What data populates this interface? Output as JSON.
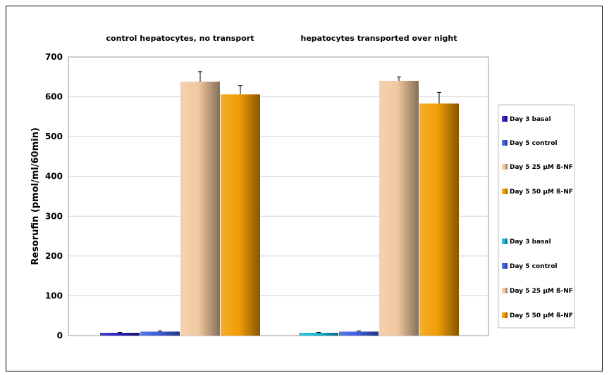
{
  "chart_data": {
    "type": "bar",
    "ylabel": "Resorufin (pmol/ml/60min)",
    "ylim": [
      0,
      700
    ],
    "yticks": [
      0,
      100,
      200,
      300,
      400,
      500,
      600,
      700
    ],
    "grid": true,
    "legend_placement": "right",
    "groups": [
      {
        "title": "control hepatocytes, no transport",
        "bars": [
          {
            "name": "Day 3 basal",
            "value": 7,
            "error": 1,
            "color": "#2a1fbf"
          },
          {
            "name": "Day 5 control",
            "value": 10,
            "error": 2,
            "color": "#3f5fe0"
          },
          {
            "name": "Day 5 25 µM ß-NF",
            "value": 638,
            "error": 25,
            "color": "#f2c9a0"
          },
          {
            "name": "Day 5 50 µM ß-NF",
            "value": 606,
            "error": 22,
            "color": "#f29e05"
          }
        ]
      },
      {
        "title": "hepatocytes transported over night",
        "bars": [
          {
            "name": "Day 3 basal",
            "value": 7,
            "error": 1,
            "color": "#18b6d6"
          },
          {
            "name": "Day 5 control",
            "value": 10,
            "error": 2,
            "color": "#3f5fe0"
          },
          {
            "name": "Day 5 25 µM ß-NF",
            "value": 640,
            "error": 10,
            "color": "#f2c9a0"
          },
          {
            "name": "Day 5 50 µM ß-NF",
            "value": 583,
            "error": 28,
            "color": "#f29e05"
          }
        ]
      }
    ],
    "legend": [
      {
        "label": "Day 3 basal",
        "color": "#2a1fbf"
      },
      {
        "label": "Day 5 control",
        "color": "#3f5fe0"
      },
      {
        "label": "Day 5 25 µM ß-NF",
        "color": "#f2c9a0"
      },
      {
        "label": "Day 5 50 µM ß-NF",
        "color": "#f29e05"
      },
      {
        "label": "Day 3 basal",
        "color": "#18b6d6"
      },
      {
        "label": "Day 5 control",
        "color": "#3f5fe0"
      },
      {
        "label": "Day 5 25 µM ß-NF",
        "color": "#f2c9a0"
      },
      {
        "label": "Day 5 50 µM ß-NF",
        "color": "#f29e05"
      }
    ]
  }
}
